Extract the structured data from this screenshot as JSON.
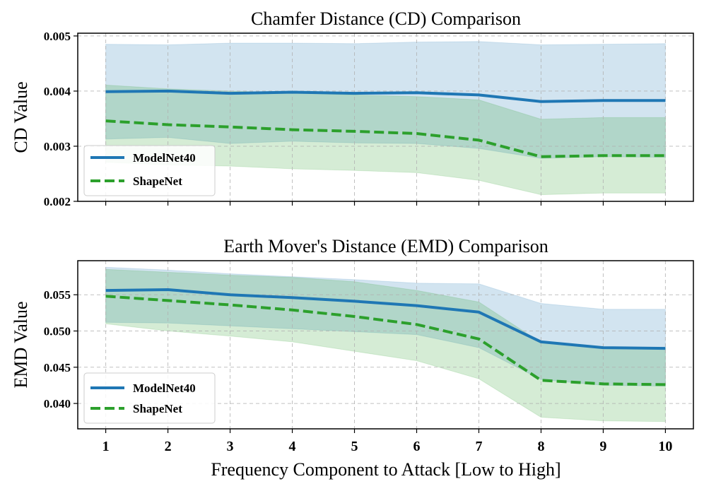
{
  "chart_data": [
    {
      "type": "line",
      "title": "Chamfer Distance (CD) Comparison",
      "ylabel": "CD Value",
      "xlabel": "",
      "x": [
        1,
        2,
        3,
        4,
        5,
        6,
        7,
        8,
        9,
        10
      ],
      "ylim": [
        0.002,
        0.00505
      ],
      "yticks": [
        0.002,
        0.003,
        0.004,
        0.005
      ],
      "ytick_labels": [
        "0.002",
        "0.003",
        "0.004",
        "0.005"
      ],
      "grid": true,
      "legend_position": "lower-left",
      "series": [
        {
          "name": "ModelNet40",
          "color": "#1f77b4",
          "style": "solid",
          "values": [
            0.00399,
            0.004,
            0.00396,
            0.00398,
            0.00396,
            0.00397,
            0.00393,
            0.00381,
            0.00383,
            0.00383
          ],
          "upper": [
            0.00485,
            0.00484,
            0.00487,
            0.00487,
            0.00486,
            0.00489,
            0.0049,
            0.00484,
            0.00485,
            0.00486
          ],
          "lower": [
            0.00313,
            0.00316,
            0.00305,
            0.00309,
            0.00306,
            0.00305,
            0.00296,
            0.00278,
            0.00281,
            0.0028
          ]
        },
        {
          "name": "ShapeNet",
          "color": "#2ca02c",
          "style": "dashed",
          "values": [
            0.00346,
            0.00339,
            0.00335,
            0.0033,
            0.00327,
            0.00323,
            0.00311,
            0.00281,
            0.00283,
            0.00283
          ],
          "upper": [
            0.00411,
            0.00404,
            0.004,
            0.00397,
            0.00393,
            0.0039,
            0.00384,
            0.00349,
            0.00352,
            0.00352
          ],
          "lower": [
            0.00271,
            0.00266,
            0.00264,
            0.00259,
            0.00256,
            0.00252,
            0.00238,
            0.00212,
            0.00215,
            0.00215
          ]
        }
      ]
    },
    {
      "type": "line",
      "title": "Earth Mover's Distance (EMD) Comparison",
      "ylabel": "EMD Value",
      "xlabel": "Frequency Component to Attack [Low to High]",
      "x": [
        1,
        2,
        3,
        4,
        5,
        6,
        7,
        8,
        9,
        10
      ],
      "xtick_labels": [
        "1",
        "2",
        "3",
        "4",
        "5",
        "6",
        "7",
        "8",
        "9",
        "10"
      ],
      "ylim": [
        0.0365,
        0.0597
      ],
      "yticks": [
        0.04,
        0.045,
        0.05,
        0.055
      ],
      "ytick_labels": [
        "0.040",
        "0.045",
        "0.050",
        "0.055"
      ],
      "grid": true,
      "legend_position": "lower-left",
      "series": [
        {
          "name": "ModelNet40",
          "color": "#1f77b4",
          "style": "solid",
          "values": [
            0.0556,
            0.0557,
            0.055,
            0.0546,
            0.0541,
            0.0535,
            0.0526,
            0.0485,
            0.0477,
            0.0476
          ],
          "upper": [
            0.0588,
            0.0584,
            0.0579,
            0.0575,
            0.0571,
            0.0566,
            0.0565,
            0.0538,
            0.053,
            0.053
          ],
          "lower": [
            0.0512,
            0.0511,
            0.0507,
            0.0503,
            0.0499,
            0.0495,
            0.0477,
            0.0433,
            0.0425,
            0.0424
          ]
        },
        {
          "name": "ShapeNet",
          "color": "#2ca02c",
          "style": "dashed",
          "values": [
            0.0548,
            0.0542,
            0.0536,
            0.0529,
            0.052,
            0.0509,
            0.0489,
            0.0432,
            0.0427,
            0.0426
          ],
          "upper": [
            0.0585,
            0.0581,
            0.0577,
            0.0574,
            0.0568,
            0.0556,
            0.054,
            0.0484,
            0.0476,
            0.0476
          ],
          "lower": [
            0.051,
            0.05,
            0.0493,
            0.0485,
            0.0472,
            0.0459,
            0.0434,
            0.0381,
            0.0376,
            0.0375
          ]
        }
      ]
    }
  ]
}
